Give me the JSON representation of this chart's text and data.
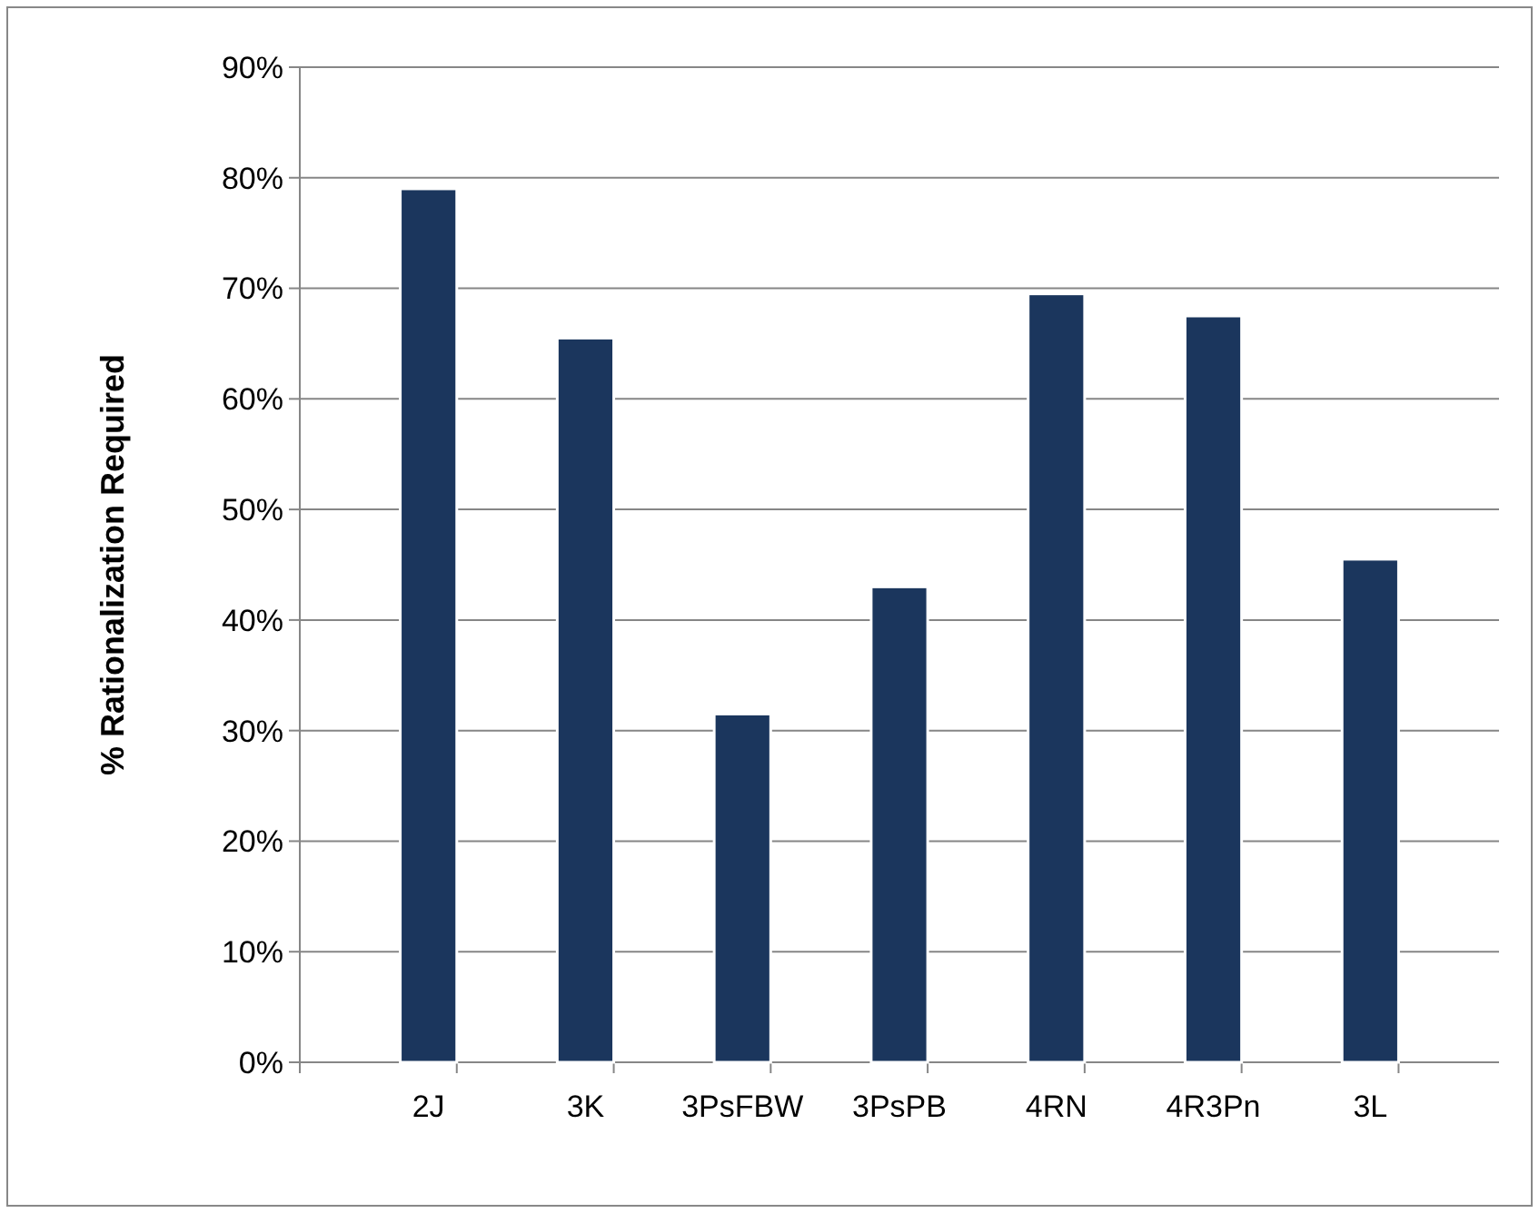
{
  "chart_data": {
    "type": "bar",
    "ylabel": "% Rationalization Required",
    "categories": [
      "2J",
      "3K",
      "3PsFBW",
      "3PsPB",
      "4RN",
      "4R3Pn",
      "3L"
    ],
    "values": [
      79,
      65.5,
      31.5,
      43,
      69.5,
      67.5,
      45.5
    ],
    "color": "#1b365d",
    "ylim": [
      0,
      90
    ],
    "yticks": [
      {
        "value": 0,
        "label": "0%"
      },
      {
        "value": 10,
        "label": "10%"
      },
      {
        "value": 20,
        "label": "20%"
      },
      {
        "value": 30,
        "label": "30%"
      },
      {
        "value": 40,
        "label": "40%"
      },
      {
        "value": 50,
        "label": "50%"
      },
      {
        "value": 60,
        "label": "60%"
      },
      {
        "value": 70,
        "label": "70%"
      },
      {
        "value": 80,
        "label": "80%"
      },
      {
        "value": 90,
        "label": "90%"
      }
    ],
    "grid": "y"
  }
}
